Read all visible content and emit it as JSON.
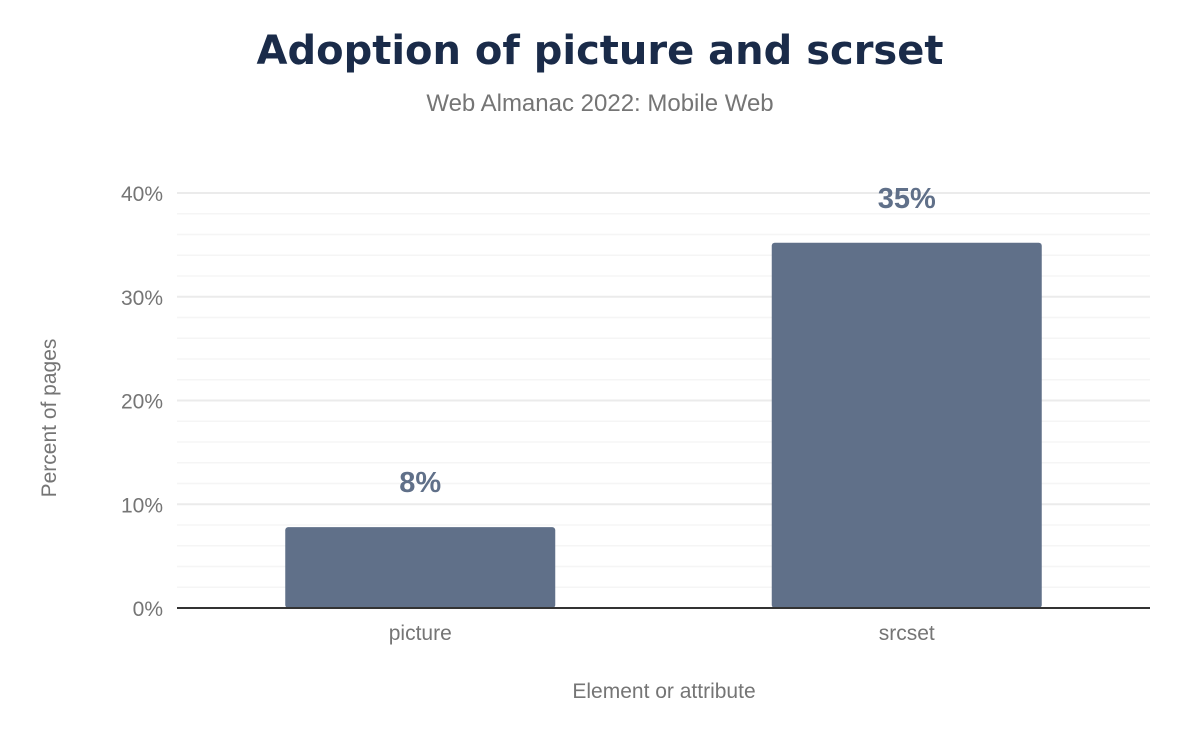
{
  "chart_data": {
    "type": "bar",
    "title": "Adoption of picture and scrset",
    "subtitle": "Web Almanac 2022: Mobile Web",
    "xlabel": "Element or attribute",
    "ylabel": "Percent of pages",
    "categories": [
      "picture",
      "srcset"
    ],
    "values": [
      7.8,
      35.2
    ],
    "data_labels": [
      "8%",
      "35%"
    ],
    "ylim": [
      0,
      40
    ],
    "yticks": [
      0,
      10,
      20,
      30,
      40
    ],
    "ytick_labels": [
      "0%",
      "10%",
      "20%",
      "30%",
      "40%"
    ],
    "grid": true,
    "bar_color": "#607089",
    "label_color": "#607089"
  }
}
